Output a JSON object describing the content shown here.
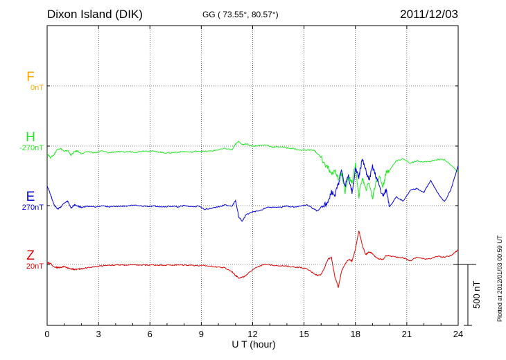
{
  "header": {
    "station": "Dixon Island (DIK)",
    "coords": "GG ( 73.55°,  80.57°)",
    "date": "2011/12/03"
  },
  "footer": {
    "plotted": "Plotted at 2012/01/03 00:59 UT"
  },
  "chart_data": {
    "type": "line",
    "xlabel": "U T (hour)",
    "xlim": [
      0,
      24
    ],
    "xticks": [
      0,
      3,
      6,
      9,
      12,
      15,
      18,
      21,
      24
    ],
    "xtick_labels": [
      "0",
      "3",
      "6",
      "9",
      "12",
      "15",
      "18",
      "21",
      "24"
    ],
    "grid": true,
    "scale_bar": {
      "label": "500 nT",
      "value_nT": 500
    },
    "series": [
      {
        "name": "F",
        "baseline": "0nT",
        "color": "#ffa500",
        "x": [],
        "y": []
      },
      {
        "name": "H",
        "baseline": "-270nT",
        "color": "#22e822",
        "x": [
          0,
          0.2,
          0.4,
          0.6,
          0.8,
          1.0,
          1.2,
          1.4,
          1.6,
          1.8,
          2.0,
          2.4,
          2.8,
          3.2,
          3.6,
          4.0,
          4.4,
          4.8,
          5.2,
          5.6,
          6.0,
          6.4,
          6.8,
          7.2,
          7.6,
          8.0,
          8.4,
          8.8,
          9.2,
          9.6,
          10.0,
          10.4,
          10.8,
          11.0,
          11.2,
          11.4,
          11.6,
          12.0,
          12.4,
          12.8,
          13.2,
          13.6,
          14.0,
          14.4,
          14.8,
          15.2,
          15.6,
          15.8,
          16.0,
          16.2,
          16.4,
          16.6,
          16.8,
          17.0,
          17.2,
          17.4,
          17.6,
          17.8,
          18.0,
          18.2,
          18.4,
          18.6,
          18.8,
          19.0,
          19.2,
          19.4,
          19.6,
          19.8,
          20.0,
          20.4,
          20.8,
          21.2,
          21.6,
          22.0,
          22.4,
          22.8,
          23.2,
          23.6,
          24.0
        ],
        "y": [
          -60,
          -95,
          -70,
          -25,
          -20,
          -45,
          -35,
          -75,
          -45,
          -40,
          -65,
          -45,
          -55,
          -40,
          -55,
          -45,
          -50,
          -45,
          -50,
          -40,
          -40,
          -45,
          -55,
          -55,
          -50,
          -45,
          -50,
          -40,
          -45,
          -40,
          -30,
          -20,
          -30,
          15,
          40,
          10,
          20,
          0,
          5,
          10,
          -10,
          -5,
          -15,
          -20,
          -35,
          -30,
          -35,
          -65,
          -95,
          -150,
          -180,
          -235,
          -195,
          -270,
          -220,
          -375,
          -250,
          -300,
          -150,
          -415,
          -260,
          -360,
          -300,
          -430,
          -290,
          -250,
          -330,
          -220,
          -195,
          -120,
          -105,
          -140,
          -120,
          -130,
          -125,
          -110,
          -110,
          -160,
          -210
        ]
      },
      {
        "name": "E",
        "baseline": "270nT",
        "color": "#0000dd",
        "x": [
          0,
          0.2,
          0.4,
          0.6,
          0.8,
          1.0,
          1.2,
          1.4,
          1.6,
          1.8,
          2.0,
          2.4,
          2.8,
          3.2,
          3.6,
          4.0,
          4.4,
          4.8,
          5.2,
          5.6,
          6.0,
          6.4,
          6.8,
          7.2,
          7.6,
          8.0,
          8.4,
          8.8,
          9.2,
          9.6,
          10.0,
          10.4,
          10.8,
          11.0,
          11.2,
          11.4,
          11.6,
          12.0,
          12.4,
          12.8,
          13.2,
          13.6,
          14.0,
          14.4,
          14.8,
          15.2,
          15.6,
          15.8,
          16.0,
          16.2,
          16.4,
          16.6,
          16.8,
          17.0,
          17.2,
          17.4,
          17.6,
          17.8,
          18.0,
          18.2,
          18.4,
          18.6,
          18.8,
          19.0,
          19.2,
          19.4,
          19.6,
          19.8,
          20.0,
          20.4,
          20.8,
          21.2,
          21.6,
          22.0,
          22.4,
          22.8,
          23.2,
          23.6,
          24.0
        ],
        "y": [
          165,
          90,
          10,
          -30,
          -10,
          20,
          35,
          -20,
          5,
          -5,
          -15,
          -5,
          -10,
          0,
          -10,
          -5,
          -5,
          0,
          0,
          -5,
          -5,
          -5,
          -10,
          -5,
          -10,
          0,
          -10,
          -5,
          -30,
          -20,
          -10,
          5,
          -5,
          40,
          -95,
          -130,
          -75,
          -50,
          -45,
          -15,
          -10,
          -15,
          -5,
          -10,
          -5,
          5,
          -30,
          -45,
          -10,
          5,
          20,
          110,
          80,
          175,
          290,
          160,
          240,
          110,
          295,
          235,
          380,
          290,
          210,
          320,
          240,
          165,
          75,
          130,
          -5,
          70,
          35,
          125,
          140,
          110,
          205,
          105,
          30,
          140,
          330
        ]
      },
      {
        "name": "Z",
        "baseline": "20nT",
        "color": "#dd0000",
        "x": [
          0,
          0.2,
          0.4,
          0.6,
          0.8,
          1.0,
          1.2,
          1.4,
          1.6,
          1.8,
          2.0,
          2.4,
          2.8,
          3.2,
          3.6,
          4.0,
          4.4,
          4.8,
          5.2,
          5.6,
          6.0,
          6.4,
          6.8,
          7.2,
          7.6,
          8.0,
          8.4,
          8.8,
          9.2,
          9.6,
          10.0,
          10.4,
          10.8,
          11.0,
          11.2,
          11.4,
          11.6,
          12.0,
          12.4,
          12.8,
          13.2,
          13.6,
          14.0,
          14.4,
          14.8,
          15.2,
          15.6,
          15.8,
          16.0,
          16.2,
          16.4,
          16.6,
          16.8,
          17.0,
          17.2,
          17.4,
          17.6,
          17.8,
          18.0,
          18.2,
          18.4,
          18.6,
          18.8,
          19.0,
          19.2,
          19.4,
          19.6,
          19.8,
          20.0,
          20.4,
          20.8,
          21.2,
          21.6,
          22.0,
          22.4,
          22.8,
          23.2,
          23.6,
          24.0
        ],
        "y": [
          15,
          10,
          -20,
          -25,
          -25,
          -15,
          -30,
          -35,
          -40,
          -40,
          -35,
          -25,
          -20,
          -10,
          -5,
          -5,
          -5,
          -5,
          -5,
          -5,
          -5,
          -5,
          -5,
          -5,
          -5,
          -5,
          -5,
          -10,
          -10,
          -15,
          -20,
          -30,
          -60,
          -90,
          -110,
          -105,
          -95,
          -40,
          -10,
          0,
          -5,
          -10,
          -15,
          -20,
          -25,
          -40,
          -75,
          -90,
          -80,
          -25,
          45,
          55,
          -100,
          -190,
          -50,
          5,
          40,
          30,
          125,
          280,
          160,
          80,
          105,
          90,
          55,
          45,
          40,
          75,
          70,
          60,
          55,
          30,
          60,
          45,
          50,
          65,
          60,
          75,
          120
        ]
      }
    ]
  }
}
